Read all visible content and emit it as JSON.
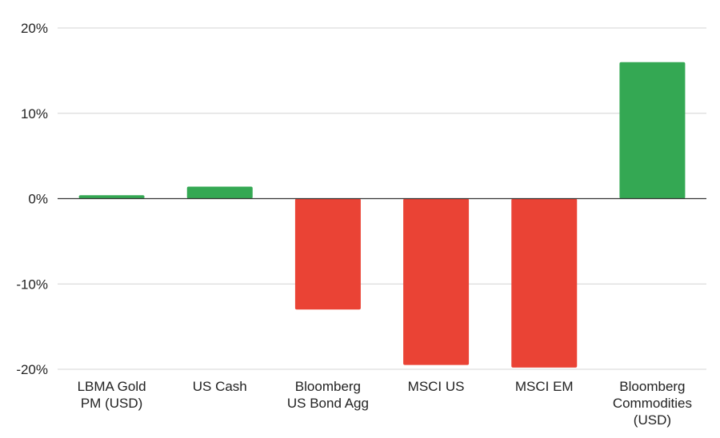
{
  "chart_data": {
    "type": "bar",
    "title": "",
    "xlabel": "",
    "ylabel": "",
    "ylim": [
      -20,
      20
    ],
    "yticks": [
      20,
      10,
      0,
      -10,
      -20
    ],
    "ytick_labels": [
      "20%",
      "10%",
      "0%",
      "-10%",
      "-20%"
    ],
    "grid": true,
    "categories": [
      [
        "LBMA Gold",
        "PM (USD)"
      ],
      [
        "US Cash"
      ],
      [
        "Bloomberg",
        "US Bond Agg"
      ],
      [
        "MSCI US"
      ],
      [
        "MSCI EM"
      ],
      [
        "Bloomberg",
        "Commodities",
        "(USD)"
      ]
    ],
    "values": [
      0.4,
      1.4,
      -13.0,
      -19.5,
      -19.8,
      16.0
    ],
    "colors": {
      "positive": "#34a853",
      "negative": "#ea4335"
    }
  }
}
